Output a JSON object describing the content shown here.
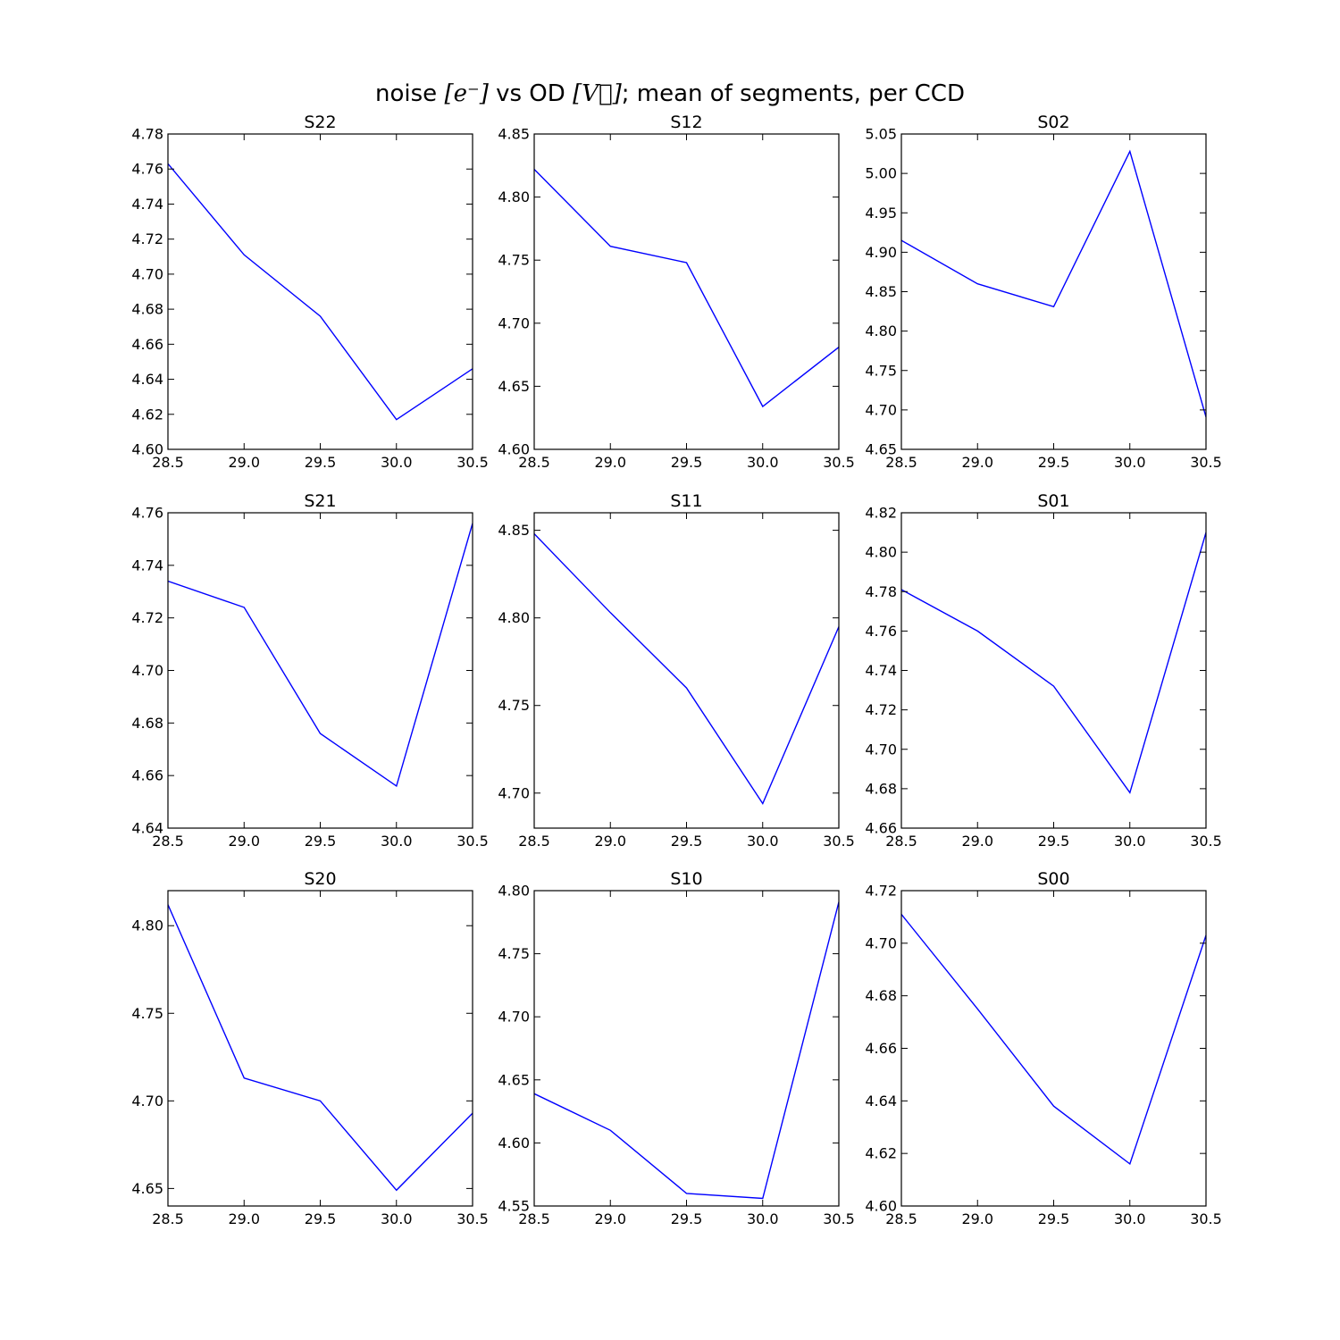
{
  "figure": {
    "title_parts": [
      "noise ",
      "[e⁻]",
      " vs OD ",
      "[V⃗]",
      "; mean of segments, per CCD"
    ]
  },
  "line_color": "#0000ff",
  "chart_data": [
    {
      "type": "line",
      "title": "S22",
      "x": [
        28.5,
        29.0,
        29.5,
        30.0,
        30.5
      ],
      "y": [
        4.763,
        4.711,
        4.676,
        4.617,
        4.646
      ],
      "xlim": [
        28.5,
        30.5
      ],
      "ylim": [
        4.6,
        4.78
      ],
      "xticks": [
        "28.5",
        "29.0",
        "29.5",
        "30.0",
        "30.5"
      ],
      "yticks": [
        "4.60",
        "4.62",
        "4.64",
        "4.66",
        "4.68",
        "4.70",
        "4.72",
        "4.74",
        "4.76",
        "4.78"
      ]
    },
    {
      "type": "line",
      "title": "S12",
      "x": [
        28.5,
        29.0,
        29.5,
        30.0,
        30.5
      ],
      "y": [
        4.822,
        4.761,
        4.748,
        4.634,
        4.681
      ],
      "xlim": [
        28.5,
        30.5
      ],
      "ylim": [
        4.6,
        4.85
      ],
      "xticks": [
        "28.5",
        "29.0",
        "29.5",
        "30.0",
        "30.5"
      ],
      "yticks": [
        "4.60",
        "4.65",
        "4.70",
        "4.75",
        "4.80",
        "4.85"
      ]
    },
    {
      "type": "line",
      "title": "S02",
      "x": [
        28.5,
        29.0,
        29.5,
        30.0,
        30.5
      ],
      "y": [
        4.915,
        4.86,
        4.831,
        5.028,
        4.691
      ],
      "xlim": [
        28.5,
        30.5
      ],
      "ylim": [
        4.65,
        5.05
      ],
      "xticks": [
        "28.5",
        "29.0",
        "29.5",
        "30.0",
        "30.5"
      ],
      "yticks": [
        "4.65",
        "4.70",
        "4.75",
        "4.80",
        "4.85",
        "4.90",
        "4.95",
        "5.00",
        "5.05"
      ]
    },
    {
      "type": "line",
      "title": "S21",
      "x": [
        28.5,
        29.0,
        29.5,
        30.0,
        30.5
      ],
      "y": [
        4.734,
        4.724,
        4.676,
        4.656,
        4.756
      ],
      "xlim": [
        28.5,
        30.5
      ],
      "ylim": [
        4.64,
        4.76
      ],
      "xticks": [
        "28.5",
        "29.0",
        "29.5",
        "30.0",
        "30.5"
      ],
      "yticks": [
        "4.64",
        "4.66",
        "4.68",
        "4.70",
        "4.72",
        "4.74",
        "4.76"
      ]
    },
    {
      "type": "line",
      "title": "S11",
      "x": [
        28.5,
        29.0,
        29.5,
        30.0,
        30.5
      ],
      "y": [
        4.848,
        4.803,
        4.76,
        4.694,
        4.795
      ],
      "xlim": [
        28.5,
        30.5
      ],
      "ylim": [
        4.68,
        4.86
      ],
      "xticks": [
        "28.5",
        "29.0",
        "29.5",
        "30.0",
        "30.5"
      ],
      "yticks": [
        "4.70",
        "4.75",
        "4.80",
        "4.85"
      ]
    },
    {
      "type": "line",
      "title": "S01",
      "x": [
        28.5,
        29.0,
        29.5,
        30.0,
        30.5
      ],
      "y": [
        4.781,
        4.76,
        4.732,
        4.678,
        4.81
      ],
      "xlim": [
        28.5,
        30.5
      ],
      "ylim": [
        4.66,
        4.82
      ],
      "xticks": [
        "28.5",
        "29.0",
        "29.5",
        "30.0",
        "30.5"
      ],
      "yticks": [
        "4.66",
        "4.68",
        "4.70",
        "4.72",
        "4.74",
        "4.76",
        "4.78",
        "4.80",
        "4.82"
      ]
    },
    {
      "type": "line",
      "title": "S20",
      "x": [
        28.5,
        29.0,
        29.5,
        30.0,
        30.5
      ],
      "y": [
        4.812,
        4.713,
        4.7,
        4.649,
        4.693
      ],
      "xlim": [
        28.5,
        30.5
      ],
      "ylim": [
        4.64,
        4.82
      ],
      "xticks": [
        "28.5",
        "29.0",
        "29.5",
        "30.0",
        "30.5"
      ],
      "yticks": [
        "4.65",
        "4.70",
        "4.75",
        "4.80"
      ]
    },
    {
      "type": "line",
      "title": "S10",
      "x": [
        28.5,
        29.0,
        29.5,
        30.0,
        30.5
      ],
      "y": [
        4.639,
        4.61,
        4.56,
        4.556,
        4.791
      ],
      "xlim": [
        28.5,
        30.5
      ],
      "ylim": [
        4.55,
        4.8
      ],
      "xticks": [
        "28.5",
        "29.0",
        "29.5",
        "30.0",
        "30.5"
      ],
      "yticks": [
        "4.55",
        "4.60",
        "4.65",
        "4.70",
        "4.75",
        "4.80"
      ]
    },
    {
      "type": "line",
      "title": "S00",
      "x": [
        28.5,
        29.0,
        29.5,
        30.0,
        30.5
      ],
      "y": [
        4.711,
        4.675,
        4.638,
        4.616,
        4.703
      ],
      "xlim": [
        28.5,
        30.5
      ],
      "ylim": [
        4.6,
        4.72
      ],
      "xticks": [
        "28.5",
        "29.0",
        "29.5",
        "30.0",
        "30.5"
      ],
      "yticks": [
        "4.60",
        "4.62",
        "4.64",
        "4.66",
        "4.68",
        "4.70",
        "4.72"
      ]
    }
  ]
}
